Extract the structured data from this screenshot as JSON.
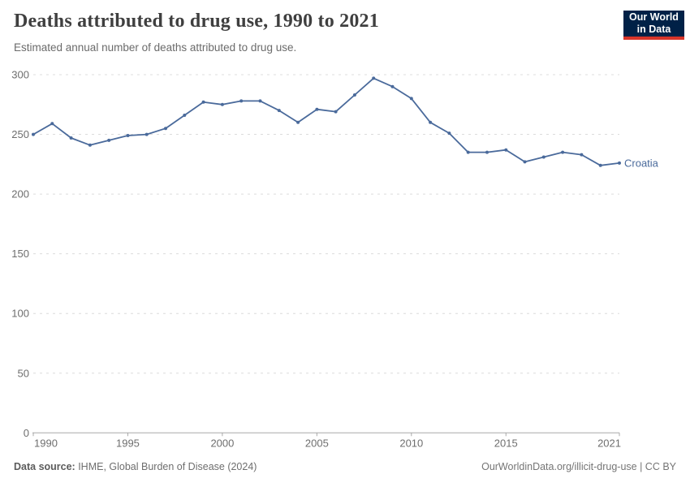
{
  "header": {
    "title": "Deaths attributed to drug use, 1990 to 2021",
    "subtitle": "Estimated annual number of deaths attributed to drug use."
  },
  "logo": {
    "line1": "Our World",
    "line2": "in Data",
    "bg_color": "#002147",
    "accent_color": "#d8352a"
  },
  "footer": {
    "data_source_label": "Data source:",
    "data_source_value": " IHME, Global Burden of Disease (2024)",
    "credit": "OurWorldinData.org/illicit-drug-use | CC BY"
  },
  "chart_data": {
    "type": "line",
    "title": "Deaths attributed to drug use, 1990 to 2021",
    "subtitle": "Estimated annual number of deaths attributed to drug use.",
    "xlabel": "",
    "ylabel": "",
    "x": [
      1990,
      1991,
      1992,
      1993,
      1994,
      1995,
      1996,
      1997,
      1998,
      1999,
      2000,
      2001,
      2002,
      2003,
      2004,
      2005,
      2006,
      2007,
      2008,
      2009,
      2010,
      2011,
      2012,
      2013,
      2014,
      2015,
      2016,
      2017,
      2018,
      2019,
      2020,
      2021
    ],
    "series": [
      {
        "name": "Croatia",
        "color": "#4a6a9b",
        "values": [
          250,
          259,
          247,
          241,
          245,
          249,
          250,
          255,
          266,
          277,
          275,
          278,
          278,
          270,
          260,
          271,
          269,
          283,
          297,
          290,
          280,
          260,
          251,
          235,
          235,
          237,
          227,
          231,
          235,
          233,
          224,
          226
        ]
      }
    ],
    "ylim": [
      0,
      300
    ],
    "y_ticks": [
      0,
      50,
      100,
      150,
      200,
      250,
      300
    ],
    "x_ticks": [
      1990,
      1995,
      2000,
      2005,
      2010,
      2015,
      2021
    ],
    "grid": "horizontal-dashed",
    "legend": "end-of-line-label",
    "colors": {
      "gridline": "#dcdcdc",
      "axis": "#a8a8a8",
      "tick_label": "#6e6e6e"
    }
  }
}
